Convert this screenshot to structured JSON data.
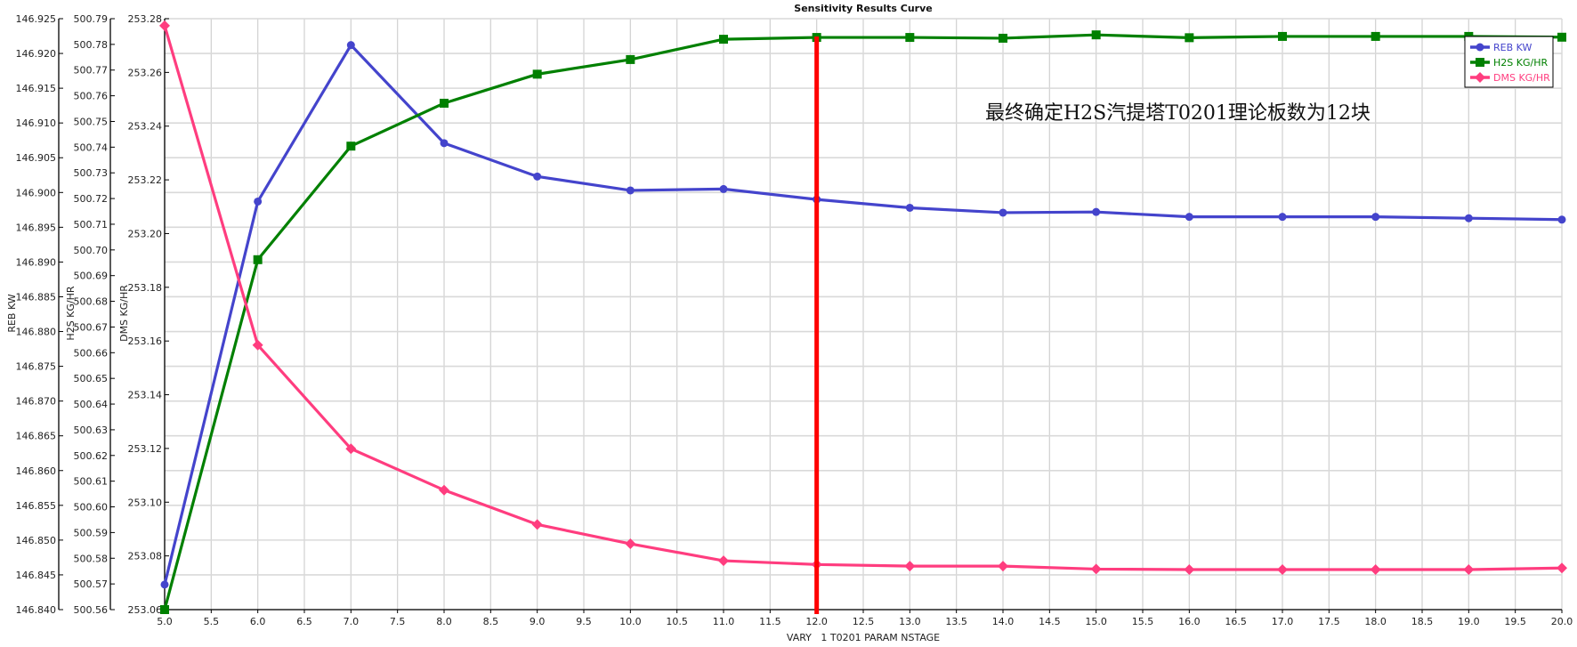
{
  "chart_data": {
    "type": "line",
    "title": "Sensitivity Results Curve",
    "xlabel": "VARY   1 T0201 PARAM NSTAGE",
    "xlim": [
      5.0,
      20.0
    ],
    "xticks": [
      "5.0",
      "5.5",
      "6.0",
      "6.5",
      "7.0",
      "7.5",
      "8.0",
      "8.5",
      "9.0",
      "9.5",
      "10.0",
      "10.5",
      "11.0",
      "11.5",
      "12.0",
      "12.5",
      "13.0",
      "13.5",
      "14.0",
      "14.5",
      "15.0",
      "15.5",
      "16.0",
      "16.5",
      "17.0",
      "17.5",
      "18.0",
      "18.5",
      "19.0",
      "19.5",
      "20.0"
    ],
    "x": [
      5,
      6,
      7,
      8,
      9,
      10,
      11,
      12,
      13,
      14,
      15,
      16,
      17,
      18,
      19,
      20
    ],
    "grid": true,
    "legend_position": "top-right",
    "axes": [
      {
        "label": "REB KW",
        "ylim": [
          146.84,
          146.925
        ],
        "ticks": [
          "146.840",
          "146.845",
          "146.850",
          "146.855",
          "146.860",
          "146.865",
          "146.870",
          "146.875",
          "146.880",
          "146.885",
          "146.890",
          "146.895",
          "146.900",
          "146.905",
          "146.910",
          "146.915",
          "146.920",
          "146.925"
        ]
      },
      {
        "label": "H2S KG/HR",
        "ylim": [
          500.56,
          500.79
        ],
        "ticks": [
          "500.56",
          "500.57",
          "500.58",
          "500.59",
          "500.60",
          "500.61",
          "500.62",
          "500.63",
          "500.64",
          "500.65",
          "500.66",
          "500.67",
          "500.68",
          "500.69",
          "500.70",
          "500.71",
          "500.72",
          "500.73",
          "500.74",
          "500.75",
          "500.76",
          "500.77",
          "500.78",
          "500.79"
        ]
      },
      {
        "label": "DMS KG/HR",
        "ylim": [
          253.06,
          253.28
        ],
        "ticks": [
          "253.06",
          "253.08",
          "253.10",
          "253.12",
          "253.14",
          "253.16",
          "253.18",
          "253.20",
          "253.22",
          "253.24",
          "253.26",
          "253.28"
        ]
      }
    ],
    "series": [
      {
        "name": "REB KW",
        "axis": 0,
        "color": "#4444cc",
        "marker": "circle",
        "values": [
          146.8436,
          146.8987,
          146.9212,
          146.9071,
          146.9023,
          146.9003,
          146.9005,
          146.899,
          146.8978,
          146.8971,
          146.8972,
          146.8965,
          146.8965,
          146.8965,
          146.8963,
          146.8961
        ]
      },
      {
        "name": "H2S KG/HR",
        "axis": 1,
        "color": "#008000",
        "marker": "square",
        "values": [
          500.56,
          500.6962,
          500.7404,
          500.7571,
          500.7684,
          500.7741,
          500.782,
          500.7827,
          500.7827,
          500.7824,
          500.7837,
          500.7826,
          500.7831,
          500.7831,
          500.7831,
          500.7828
        ]
      },
      {
        "name": "DMS KG/HR",
        "axis": 2,
        "color": "#ff3d7f",
        "marker": "diamond",
        "values": [
          253.2774,
          253.1585,
          253.1199,
          253.1045,
          253.0917,
          253.0845,
          253.0782,
          253.0768,
          253.0762,
          253.0762,
          253.0751,
          253.0749,
          253.0749,
          253.0749,
          253.0749,
          253.0755
        ]
      }
    ],
    "marker_line": {
      "x": 12.0,
      "color": "#ff0000"
    },
    "annotation": "最终确定H2S汽提塔T0201理论板数为12块"
  }
}
